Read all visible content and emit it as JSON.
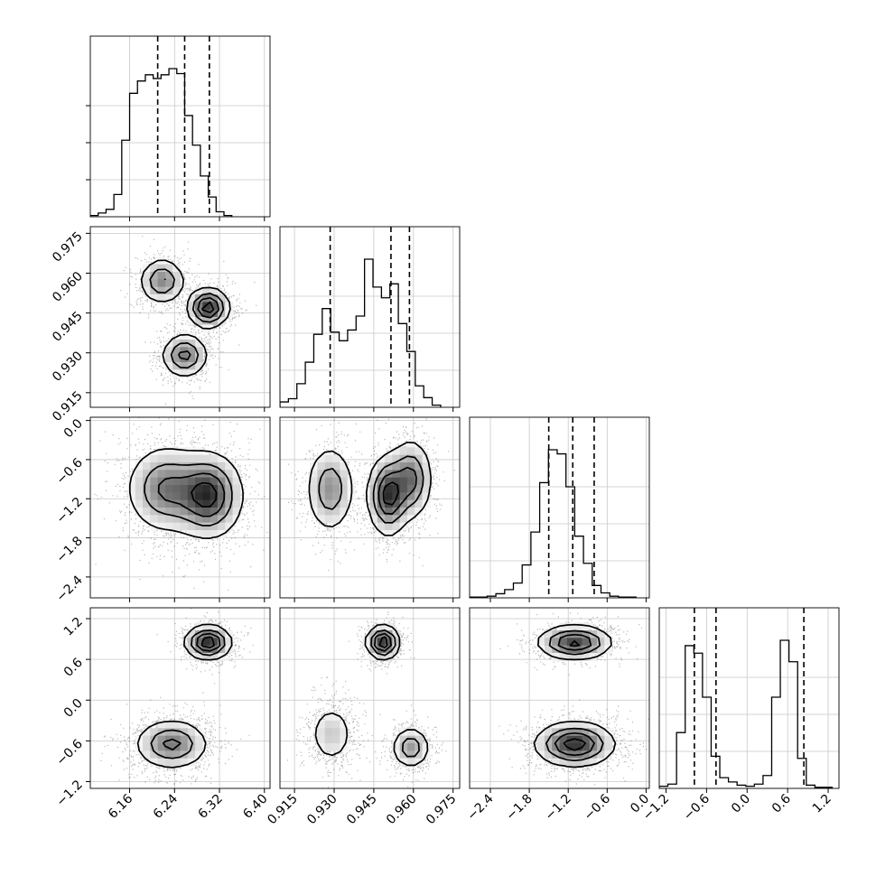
{
  "chart_data": {
    "type": "corner",
    "parameters": 4,
    "ranges": [
      [
        6.09,
        6.41
      ],
      [
        0.9095,
        0.9775
      ],
      [
        -2.72,
        0.05
      ],
      [
        -1.3,
        1.36
      ]
    ],
    "tick_labels": [
      [
        "6.16",
        "6.24",
        "6.32",
        "6.40"
      ],
      [
        "0.915",
        "0.930",
        "0.945",
        "0.960",
        "0.975"
      ],
      [
        "−2.4",
        "−1.8",
        "−1.2",
        "−0.6",
        "0.0"
      ],
      [
        "−1.2",
        "−0.6",
        "0.0",
        "0.6",
        "1.2"
      ]
    ],
    "tick_values": [
      [
        6.16,
        6.24,
        6.32,
        6.4
      ],
      [
        0.915,
        0.93,
        0.945,
        0.96,
        0.975
      ],
      [
        -2.4,
        -1.8,
        -1.2,
        -0.6,
        0.0
      ],
      [
        -1.2,
        -0.6,
        0.0,
        0.6,
        1.2
      ]
    ],
    "quantiles": [
      [
        6.21,
        6.258,
        6.302
      ],
      [
        0.9285,
        0.9515,
        0.9585
      ],
      [
        -1.5,
        -1.13,
        -0.8
      ],
      [
        -0.78,
        -0.46,
        0.84
      ]
    ],
    "histograms": [
      {
        "left": 6.09,
        "width": 0.014,
        "counts": [
          1,
          3,
          6,
          18,
          62,
          100,
          110,
          115,
          112,
          115,
          120,
          116,
          82,
          58,
          33,
          16,
          4,
          1
        ]
      },
      {
        "left": 0.9095,
        "width": 0.0032,
        "counts": [
          5,
          8,
          22,
          42,
          68,
          92,
          70,
          62,
          72,
          85,
          138,
          112,
          102,
          115,
          78,
          52,
          20,
          9,
          2
        ]
      },
      {
        "left": -2.72,
        "width": 0.135,
        "counts": [
          1,
          1,
          2,
          5,
          10,
          18,
          40,
          80,
          140,
          180,
          175,
          135,
          75,
          42,
          15,
          6,
          2,
          1,
          1
        ]
      },
      {
        "left": -1.3,
        "width": 0.128,
        "counts": [
          2,
          4,
          52,
          133,
          126,
          85,
          30,
          10,
          6,
          3,
          2,
          4,
          12,
          85,
          138,
          118,
          28,
          3,
          1,
          1
        ]
      }
    ],
    "blobs": {
      "1-0": [
        {
          "mx": 6.218,
          "my": 0.957,
          "sx": 0.02,
          "sy": 0.0042,
          "w": 0.3
        },
        {
          "mx": 6.3,
          "my": 0.947,
          "sx": 0.018,
          "sy": 0.0036,
          "w": 0.38
        },
        {
          "mx": 6.258,
          "my": 0.929,
          "sx": 0.02,
          "sy": 0.004,
          "w": 0.32
        }
      ],
      "2-0": [
        {
          "mx": 6.225,
          "my": -1.05,
          "sx": 0.035,
          "sy": 0.33,
          "w": 0.45
        },
        {
          "mx": 6.3,
          "my": -1.15,
          "sx": 0.03,
          "sy": 0.32,
          "w": 0.55
        }
      ],
      "2-1": [
        {
          "mx": 0.9285,
          "my": -1.05,
          "sx": 0.0045,
          "sy": 0.33,
          "w": 0.3
        },
        {
          "mx": 0.9505,
          "my": -1.15,
          "sx": 0.0038,
          "sy": 0.3,
          "w": 0.4
        },
        {
          "mx": 0.959,
          "my": -0.9,
          "sx": 0.004,
          "sy": 0.3,
          "w": 0.3
        }
      ],
      "3-0": [
        {
          "mx": 6.3,
          "my": 0.85,
          "sx": 0.02,
          "sy": 0.12,
          "w": 0.4
        },
        {
          "mx": 6.235,
          "my": -0.65,
          "sx": 0.032,
          "sy": 0.18,
          "w": 0.6
        }
      ],
      "3-1": [
        {
          "mx": 0.9485,
          "my": 0.85,
          "sx": 0.003,
          "sy": 0.12,
          "w": 0.4
        },
        {
          "mx": 0.929,
          "my": -0.5,
          "sx": 0.0042,
          "sy": 0.22,
          "w": 0.3
        },
        {
          "mx": 0.959,
          "my": -0.7,
          "sx": 0.0035,
          "sy": 0.15,
          "w": 0.3
        }
      ],
      "3-2": [
        {
          "mx": -1.1,
          "my": 0.85,
          "sx": 0.28,
          "sy": 0.12,
          "w": 0.4
        },
        {
          "mx": -1.1,
          "my": -0.65,
          "sx": 0.3,
          "sy": 0.16,
          "w": 0.6
        }
      ]
    },
    "grid": true,
    "title": "",
    "axis_labels": []
  }
}
